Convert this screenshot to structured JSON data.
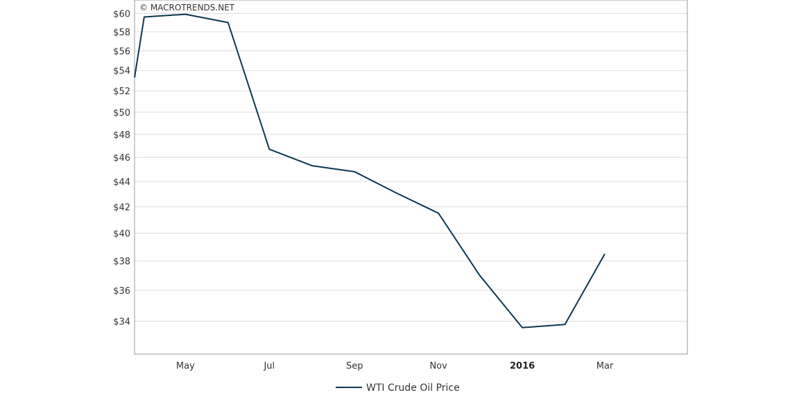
{
  "credit": "© MACROTRENDS.NET",
  "colors": {
    "series": "#0b3650",
    "grid": "#dddddd",
    "frame": "#999999"
  },
  "chart_data": {
    "type": "line",
    "title": "",
    "xlabel": "",
    "ylabel": "",
    "y_scale": "log",
    "ylim": [
      32,
      61.5
    ],
    "xlim": [
      "2015-03-25",
      "2016-04-30"
    ],
    "grid": true,
    "legend_position": "bottom-center",
    "y_ticks": [
      {
        "value": 34,
        "label": "$34"
      },
      {
        "value": 36,
        "label": "$36"
      },
      {
        "value": 38,
        "label": "$38"
      },
      {
        "value": 40,
        "label": "$40"
      },
      {
        "value": 42,
        "label": "$42"
      },
      {
        "value": 44,
        "label": "$44"
      },
      {
        "value": 46,
        "label": "$46"
      },
      {
        "value": 48,
        "label": "$48"
      },
      {
        "value": 50,
        "label": "$50"
      },
      {
        "value": 52,
        "label": "$52"
      },
      {
        "value": 54,
        "label": "$54"
      },
      {
        "value": 56,
        "label": "$56"
      },
      {
        "value": 58,
        "label": "$58"
      },
      {
        "value": 60,
        "label": "$60"
      }
    ],
    "x_ticks": [
      {
        "date": "2015-05-01",
        "label": "May",
        "bold": false
      },
      {
        "date": "2015-07-01",
        "label": "Jul",
        "bold": false
      },
      {
        "date": "2015-09-01",
        "label": "Sep",
        "bold": false
      },
      {
        "date": "2015-11-01",
        "label": "Nov",
        "bold": false
      },
      {
        "date": "2016-01-01",
        "label": "2016",
        "bold": true
      },
      {
        "date": "2016-03-01",
        "label": "Mar",
        "bold": false
      }
    ],
    "series": [
      {
        "name": "WTI Crude Oil Price",
        "points": [
          {
            "x": "2015-03-25",
            "y": 53.3
          },
          {
            "x": "2015-04-01",
            "y": 59.6
          },
          {
            "x": "2015-05-01",
            "y": 59.9
          },
          {
            "x": "2015-06-01",
            "y": 59.0
          },
          {
            "x": "2015-07-01",
            "y": 46.7
          },
          {
            "x": "2015-08-01",
            "y": 45.3
          },
          {
            "x": "2015-09-01",
            "y": 44.8
          },
          {
            "x": "2015-10-01",
            "y": 43.1
          },
          {
            "x": "2015-11-01",
            "y": 41.5
          },
          {
            "x": "2015-12-01",
            "y": 37.0
          },
          {
            "x": "2016-01-01",
            "y": 33.6
          },
          {
            "x": "2016-02-01",
            "y": 33.8
          },
          {
            "x": "2016-03-01",
            "y": 38.5
          }
        ]
      }
    ]
  }
}
